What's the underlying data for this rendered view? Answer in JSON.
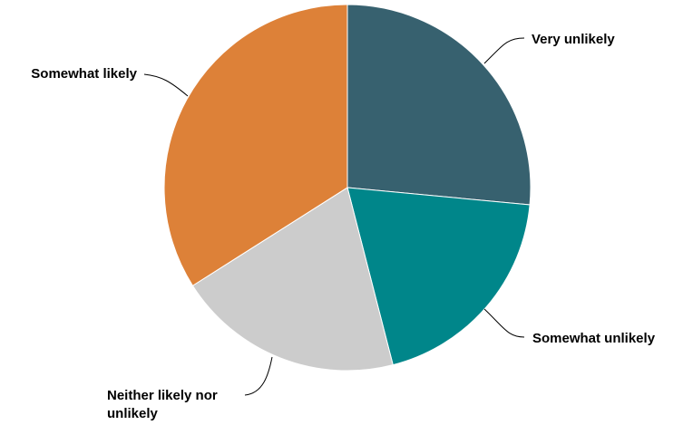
{
  "chart_data": {
    "type": "pie",
    "title": "",
    "slices": [
      {
        "label": "Very unlikely",
        "label_lines": [
          "Very unlikely"
        ],
        "value": 26.5,
        "color": "#37616f"
      },
      {
        "label": "Somewhat unlikely",
        "label_lines": [
          "Somewhat unlikely"
        ],
        "value": 19.5,
        "color": "#00868a"
      },
      {
        "label": "Neither likely nor unlikely",
        "label_lines": [
          "Neither likely nor",
          "unlikely"
        ],
        "value": 20.0,
        "color": "#cccccc"
      },
      {
        "label": "Somewhat likely",
        "label_lines": [
          "Somewhat likely"
        ],
        "value": 34.0,
        "color": "#dd8138"
      }
    ],
    "legend": "none",
    "labels": "outside-with-leaders"
  }
}
